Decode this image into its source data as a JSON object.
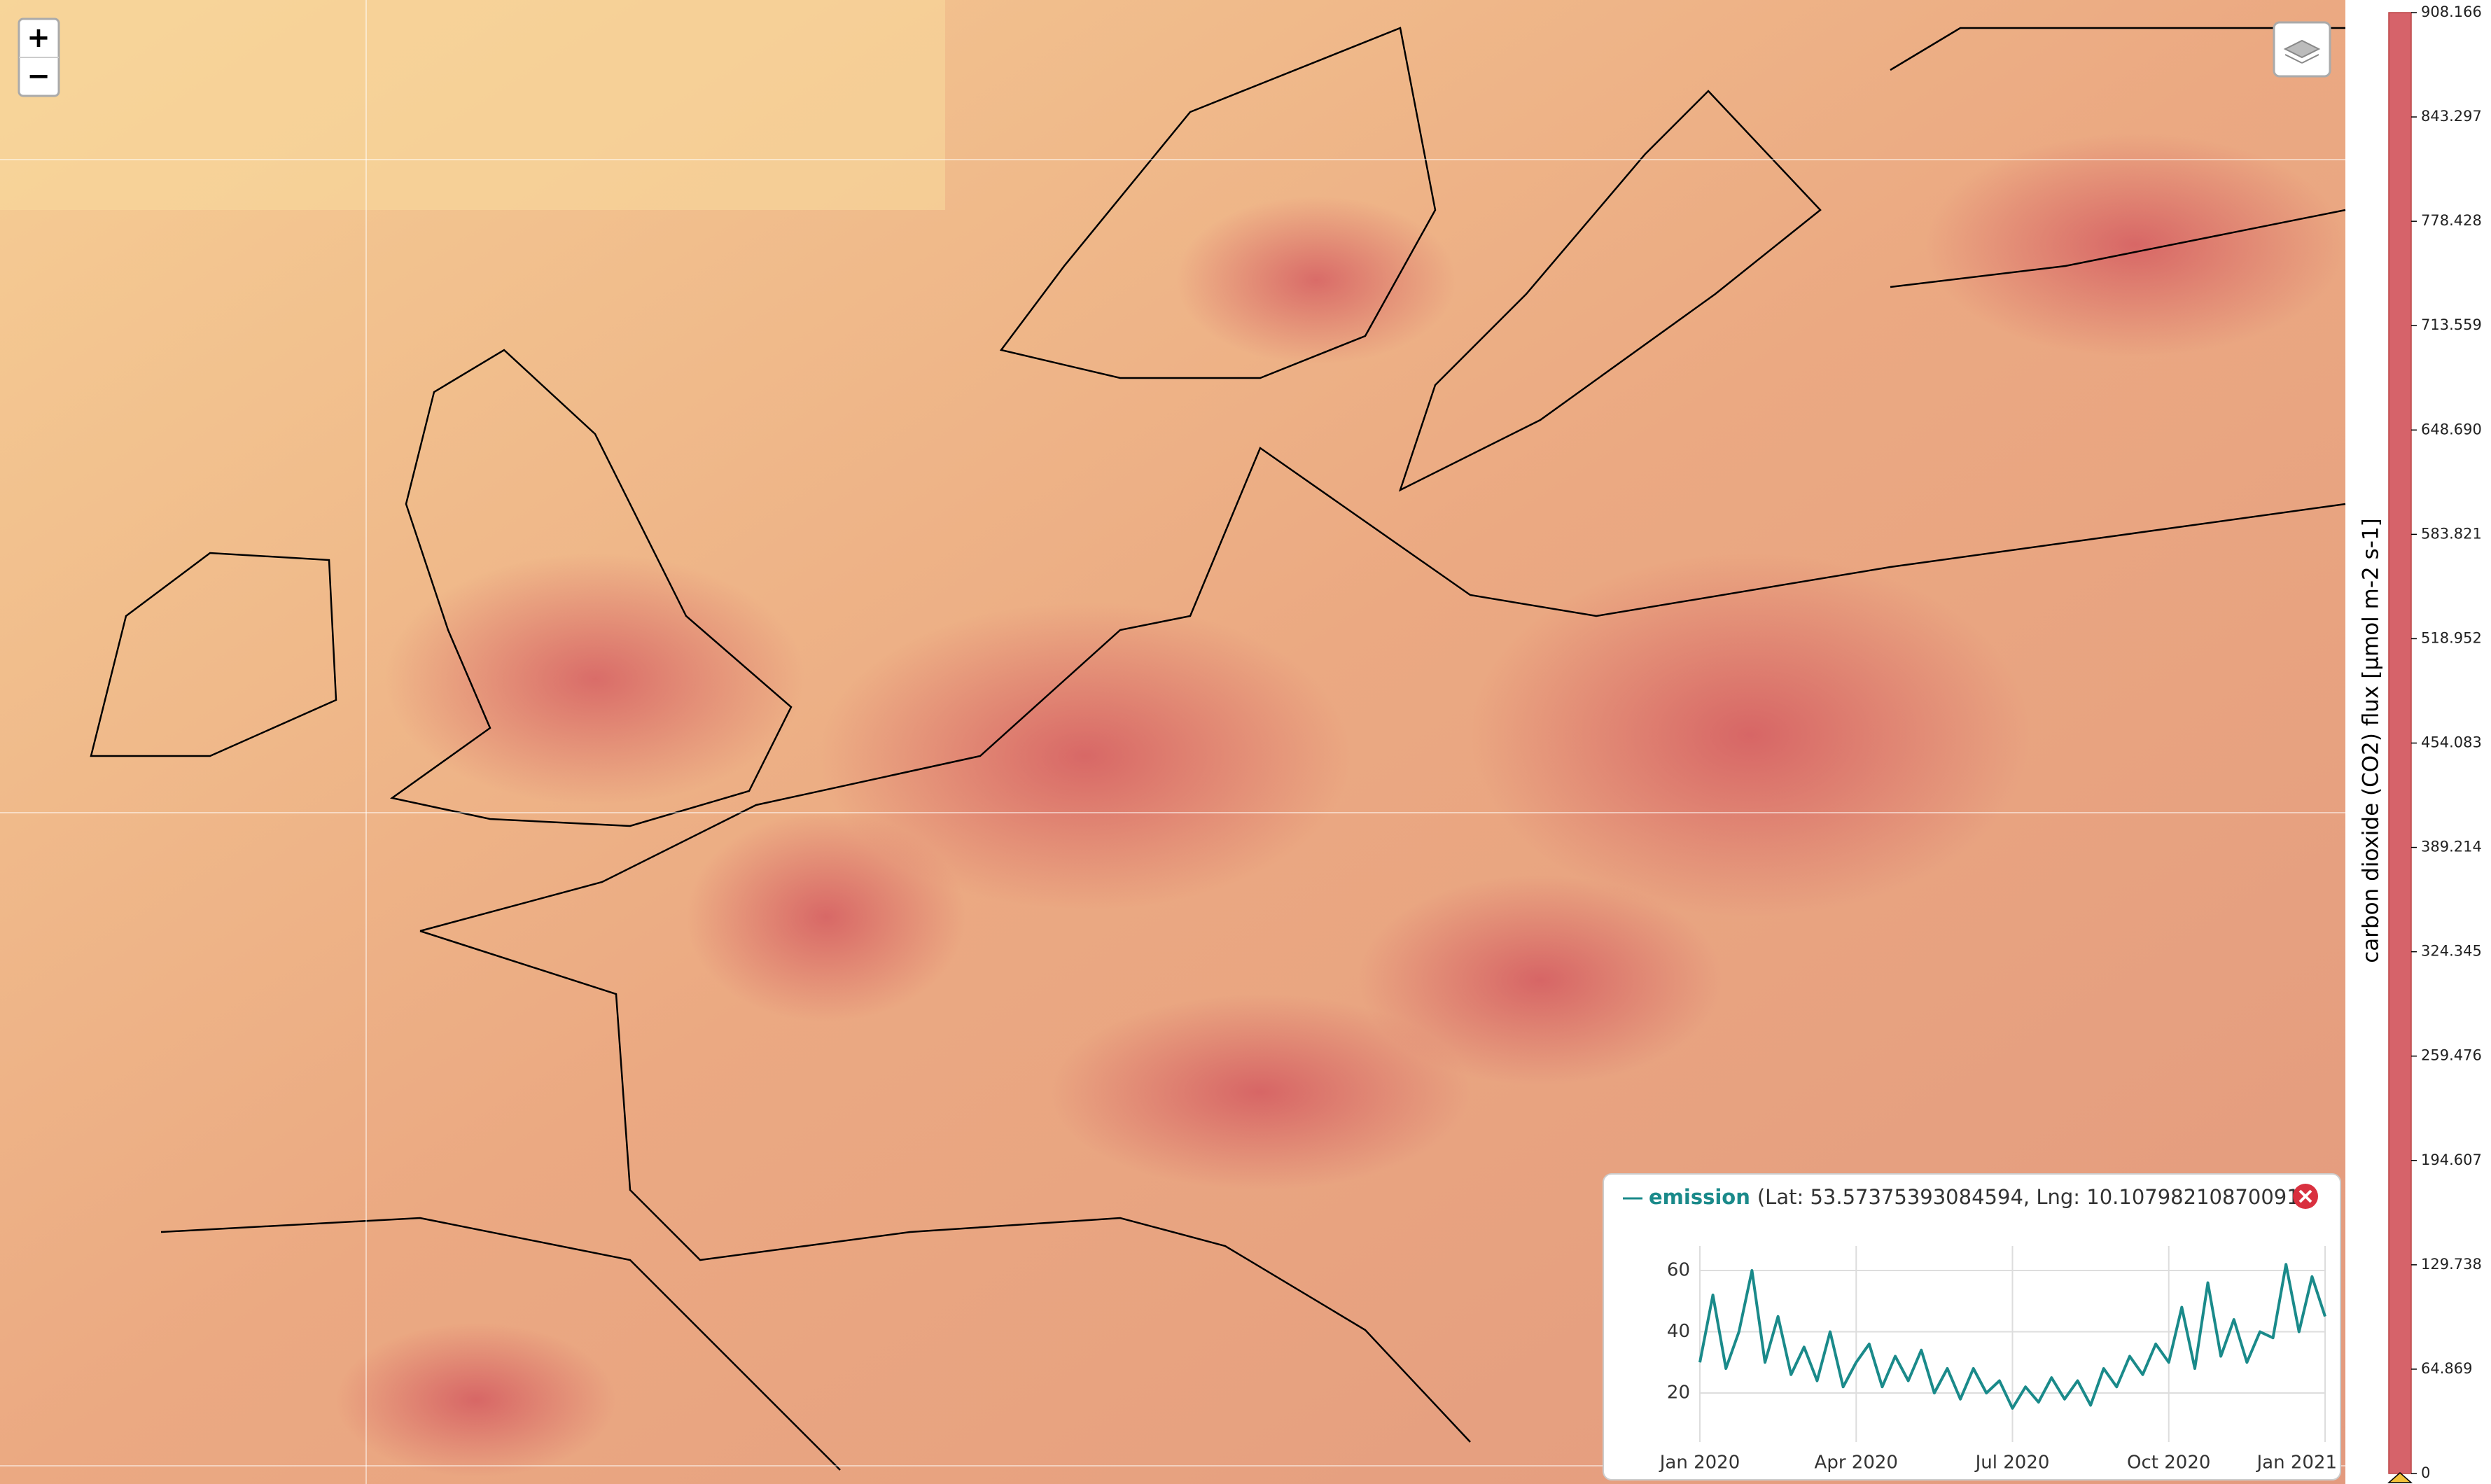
{
  "map": {
    "zoom_in": "+",
    "zoom_out": "−"
  },
  "colorbar": {
    "title": "carbon dioxide (CO2) flux [µmol m-2 s-1]",
    "lim": [
      0,
      908.166
    ],
    "ticks": [
      908.166,
      843.297,
      778.428,
      713.559,
      {
        "value": 648.69,
        "label": "648.690"
      },
      583.821,
      518.952,
      454.083,
      389.214,
      324.345,
      259.476,
      194.607,
      129.738,
      64.869,
      0
    ]
  },
  "popup": {
    "coords": "(Lat: 53.57375393084594, Lng: 10.10798210870091)"
  },
  "chart_data": {
    "type": "line",
    "x": [
      0,
      0.25,
      0.5,
      0.75,
      1,
      1.25,
      1.5,
      1.75,
      2,
      2.25,
      2.5,
      2.75,
      3,
      3.25,
      3.5,
      3.75,
      4,
      4.25,
      4.5,
      4.75,
      5,
      5.25,
      5.5,
      5.75,
      6,
      6.25,
      6.5,
      6.75,
      7,
      7.25,
      7.5,
      7.75,
      8,
      8.25,
      8.5,
      8.75,
      9,
      9.25,
      9.5,
      9.75,
      10,
      10.25,
      10.5,
      10.75,
      11,
      11.25,
      11.5,
      11.75,
      12
    ],
    "series": [
      {
        "name": "emission",
        "color": "#1a8a8a",
        "values": [
          30,
          52,
          28,
          40,
          60,
          30,
          45,
          26,
          35,
          24,
          40,
          22,
          30,
          36,
          22,
          32,
          24,
          34,
          20,
          28,
          18,
          28,
          20,
          24,
          15,
          22,
          17,
          25,
          18,
          24,
          16,
          28,
          22,
          32,
          26,
          36,
          30,
          48,
          28,
          56,
          32,
          44,
          30,
          40,
          38,
          62,
          40,
          58,
          45
        ]
      }
    ],
    "xlim": [
      0,
      12
    ],
    "xticks": [
      {
        "value": 0,
        "label": "Jan 2020"
      },
      {
        "value": 3,
        "label": "Apr 2020"
      },
      {
        "value": 6,
        "label": "Jul 2020"
      },
      {
        "value": 9,
        "label": "Oct 2020"
      },
      {
        "value": 12,
        "label": "Jan 2021"
      }
    ],
    "ylim": [
      4,
      68
    ],
    "yticks": [
      20,
      40,
      60
    ],
    "grid": true
  }
}
